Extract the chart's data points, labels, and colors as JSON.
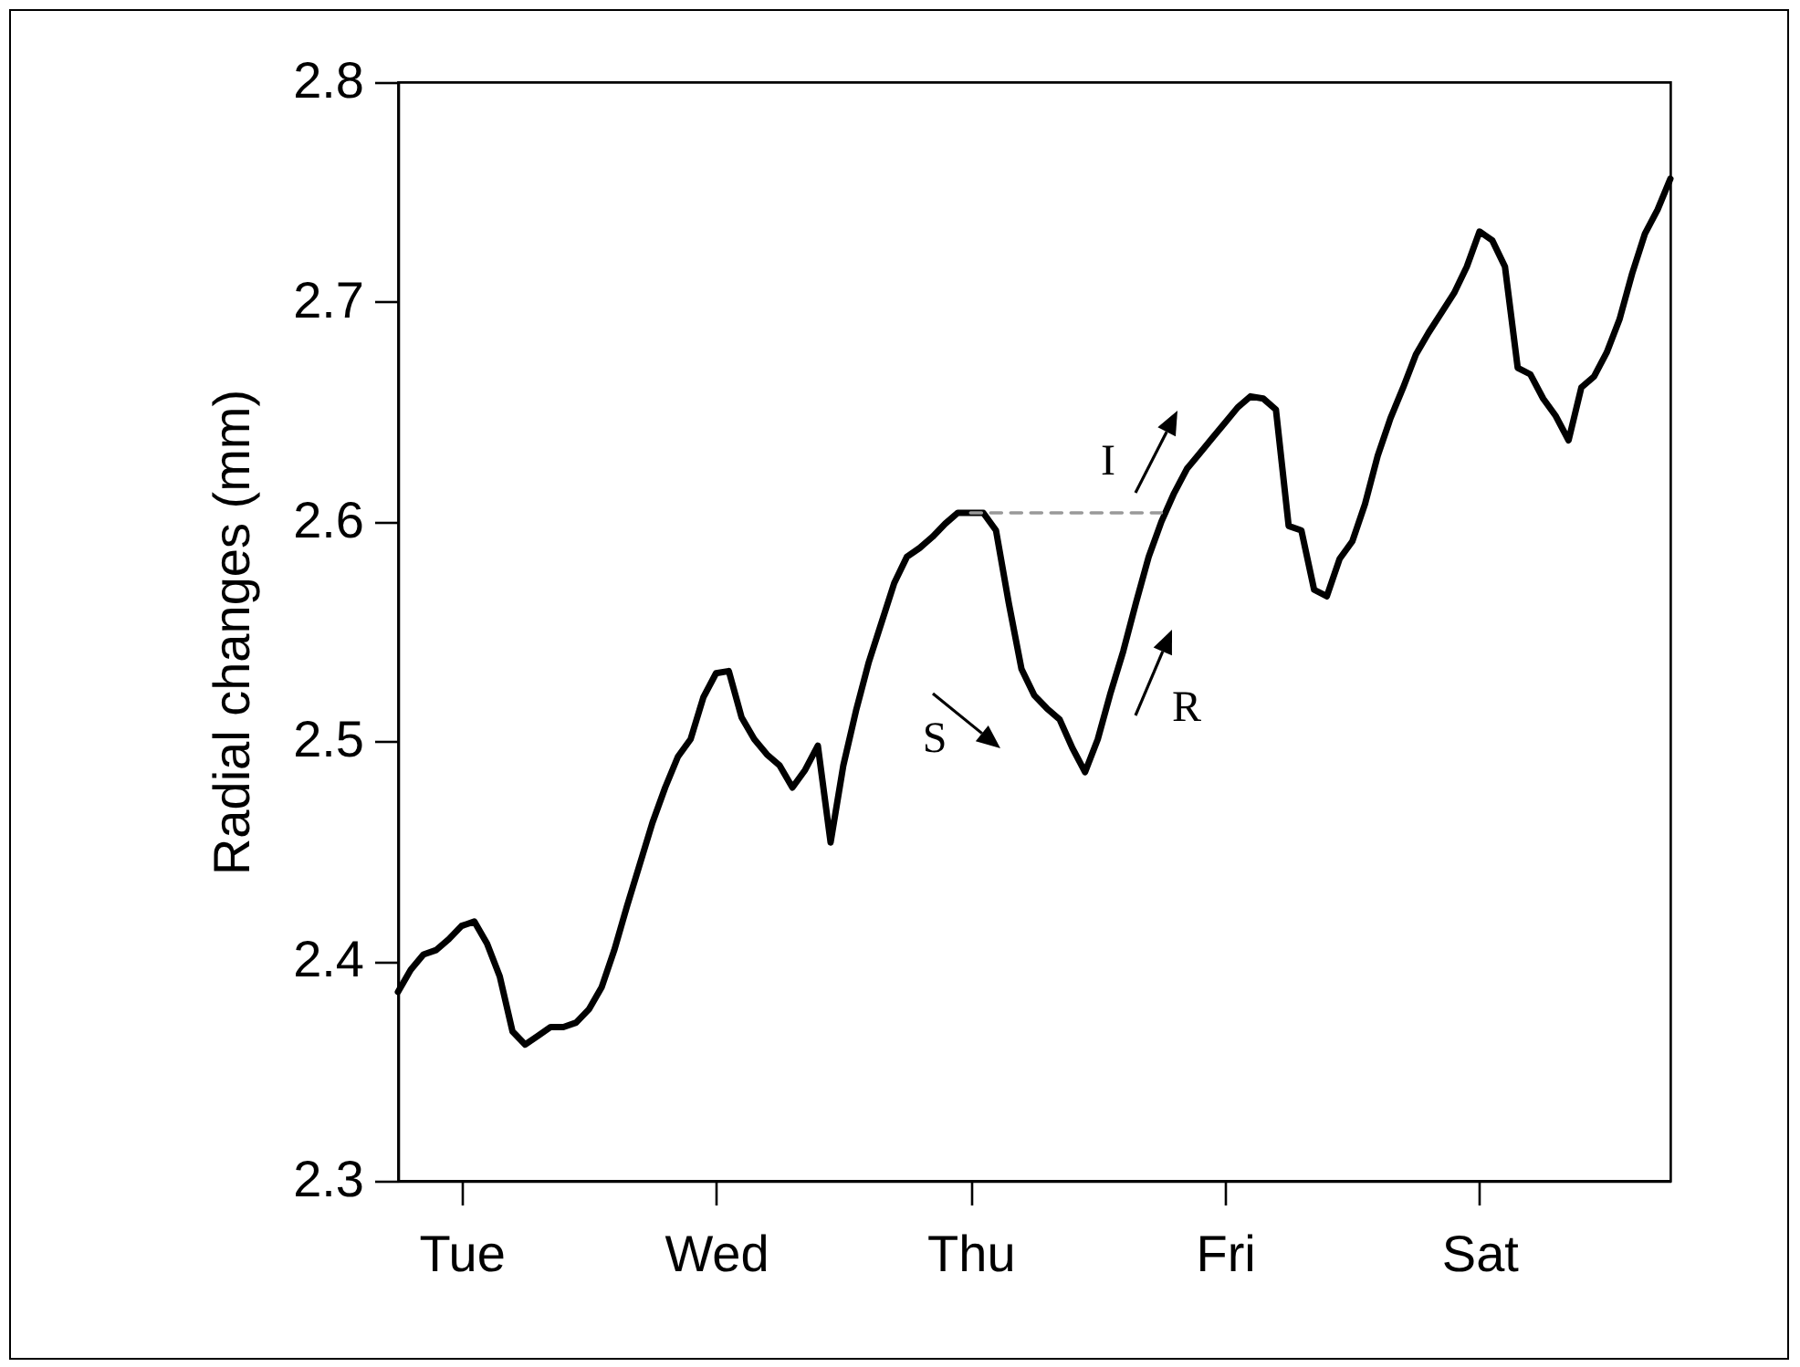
{
  "chart_data": {
    "type": "line",
    "ylabel": "Radial changes (mm)",
    "categories": [
      null,
      null,
      null,
      null,
      null,
      "Tue",
      null,
      null,
      null,
      null,
      null,
      null,
      null,
      null,
      null,
      null,
      null,
      null,
      null,
      null,
      null,
      null,
      null,
      null,
      null,
      "Wed",
      null,
      null,
      null,
      null,
      null,
      null,
      null,
      null,
      null,
      null,
      null,
      null,
      null,
      null,
      null,
      null,
      null,
      null,
      null,
      "Thu",
      null,
      null,
      null,
      null,
      null,
      null,
      null,
      null,
      null,
      null,
      null,
      null,
      null,
      null,
      null,
      null,
      null,
      null,
      null,
      "Fri",
      null,
      null,
      null,
      null,
      null,
      null,
      null,
      null,
      null,
      null,
      null,
      null,
      null,
      null,
      null,
      null,
      null,
      null,
      null,
      "Sat",
      null,
      null,
      null,
      null,
      null,
      null,
      null,
      null,
      null,
      null,
      null,
      null,
      null,
      null,
      null
    ],
    "ylim": [
      2.3,
      2.8
    ],
    "yticks": [
      2.3,
      2.4,
      2.5,
      2.6,
      2.7,
      2.8
    ],
    "grid": false,
    "marker": "none",
    "line_style": "solid",
    "series": [
      {
        "color": "#000000",
        "values": [
          2.386,
          2.396,
          2.403,
          2.405,
          2.41,
          2.416,
          2.418,
          2.408,
          2.393,
          2.368,
          2.362,
          2.366,
          2.37,
          2.37,
          2.372,
          2.378,
          2.388,
          2.405,
          2.425,
          2.444,
          2.463,
          2.479,
          2.493,
          2.501,
          2.52,
          2.531,
          2.532,
          2.511,
          2.501,
          2.494,
          2.489,
          2.479,
          2.487,
          2.498,
          2.454,
          2.489,
          2.514,
          2.536,
          2.554,
          2.572,
          2.584,
          2.588,
          2.593,
          2.599,
          2.604,
          2.604,
          2.604,
          2.596,
          2.563,
          2.533,
          2.521,
          2.515,
          2.51,
          2.497,
          2.486,
          2.501,
          2.522,
          2.541,
          2.563,
          2.584,
          2.6,
          2.613,
          2.624,
          2.631,
          2.638,
          2.645,
          2.652,
          2.657,
          2.656,
          2.651,
          2.598,
          2.596,
          2.569,
          2.566,
          2.583,
          2.591,
          2.608,
          2.63,
          2.647,
          2.661,
          2.676,
          2.686,
          2.695,
          2.704,
          2.716,
          2.732,
          2.728,
          2.716,
          2.67,
          2.667,
          2.656,
          2.648,
          2.637,
          2.661,
          2.666,
          2.677,
          2.692,
          2.713,
          2.731,
          2.742,
          2.756
        ]
      },
      {
        "color": "#999999",
        "line_style": "dashed",
        "values": [
          null,
          null,
          null,
          null,
          null,
          null,
          null,
          null,
          null,
          null,
          null,
          null,
          null,
          null,
          null,
          null,
          null,
          null,
          null,
          null,
          null,
          null,
          null,
          null,
          null,
          null,
          null,
          null,
          null,
          null,
          null,
          null,
          null,
          null,
          null,
          null,
          null,
          null,
          null,
          null,
          null,
          null,
          null,
          null,
          null,
          2.604,
          2.604,
          2.604,
          2.604,
          2.604,
          2.604,
          2.604,
          2.604,
          2.604,
          2.604,
          2.604,
          2.604,
          2.604,
          2.604,
          2.604,
          2.604,
          null,
          null,
          null,
          null,
          null,
          null,
          null,
          null,
          null,
          null,
          null,
          null,
          null,
          null,
          null,
          null,
          null,
          null,
          null,
          null,
          null,
          null,
          null,
          null,
          null,
          null,
          null,
          null,
          null,
          null,
          null,
          null,
          null,
          null,
          null,
          null,
          null,
          null,
          null,
          null
        ]
      }
    ],
    "annotations": [
      "S",
      "R",
      "I"
    ]
  }
}
